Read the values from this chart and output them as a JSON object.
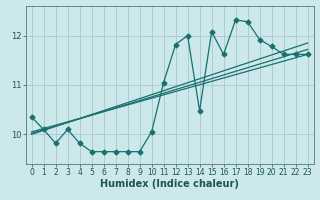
{
  "background_color": "#cce8ea",
  "grid_color": "#a8c8cc",
  "line_color": "#1a7070",
  "xlabel": "Humidex (Indice chaleur)",
  "xlim": [
    -0.5,
    23.5
  ],
  "ylim": [
    9.4,
    12.6
  ],
  "yticks": [
    10,
    11,
    12
  ],
  "xticks": [
    0,
    1,
    2,
    3,
    4,
    5,
    6,
    7,
    8,
    9,
    10,
    11,
    12,
    13,
    14,
    15,
    16,
    17,
    18,
    19,
    20,
    21,
    22,
    23
  ],
  "series1_x": [
    0,
    1,
    2,
    3,
    4,
    5,
    6,
    7,
    8,
    9,
    10,
    11,
    12,
    13,
    14,
    15,
    16,
    17,
    18,
    19,
    20,
    21,
    22,
    23
  ],
  "series1_y": [
    10.35,
    10.1,
    9.82,
    10.1,
    9.82,
    9.65,
    9.65,
    9.65,
    9.65,
    9.65,
    10.05,
    11.05,
    11.82,
    12.0,
    10.48,
    12.08,
    11.62,
    12.32,
    12.28,
    11.92,
    11.78,
    11.62,
    11.62,
    11.62
  ],
  "line1_x": [
    0,
    23
  ],
  "line1_y": [
    10.05,
    11.62
  ],
  "line2_x": [
    0,
    23
  ],
  "line2_y": [
    10.02,
    11.72
  ],
  "line3_x": [
    0,
    23
  ],
  "line3_y": [
    10.0,
    11.85
  ],
  "markersize": 2.5,
  "linewidth": 0.9,
  "tick_fontsize": 5.5,
  "xlabel_fontsize": 7
}
